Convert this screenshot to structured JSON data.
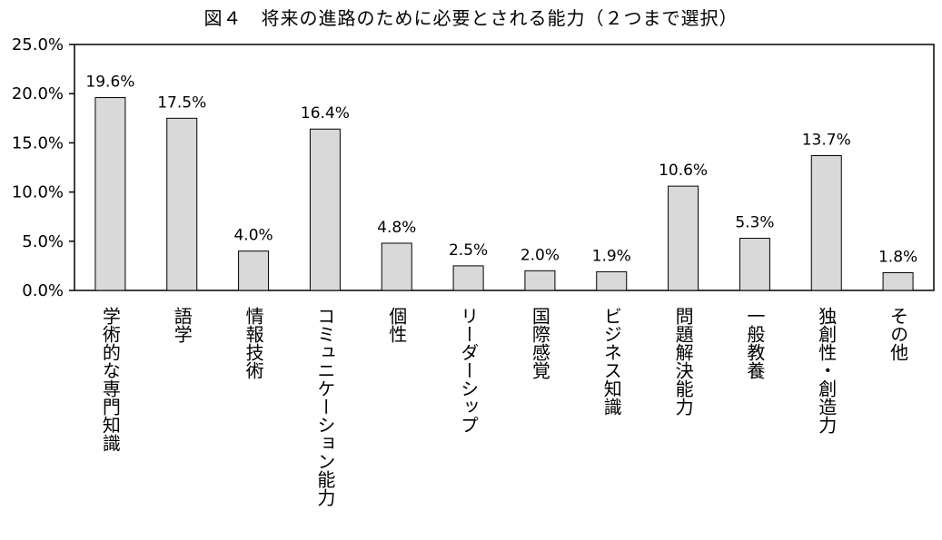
{
  "chart_data": {
    "type": "bar",
    "title": "図４　将来の進路のために必要とされる能力（２つまで選択）",
    "categories": [
      "学術的な専門知識",
      "語学",
      "情報技術",
      "コミュニケーション能力",
      "個性",
      "リーダーシップ",
      "国際感覚",
      "ビジネス知識",
      "問題解決能力",
      "一般教養",
      "独創性・創造力",
      "その他"
    ],
    "values": [
      19.6,
      17.5,
      4.0,
      16.4,
      4.8,
      2.5,
      2.0,
      1.9,
      10.6,
      5.3,
      13.7,
      1.8
    ],
    "data_labels": [
      "19.6%",
      "17.5%",
      "4.0%",
      "16.4%",
      "4.8%",
      "2.5%",
      "2.0%",
      "1.9%",
      "10.6%",
      "5.3%",
      "13.7%",
      "1.8%"
    ],
    "y_ticks": [
      "0.0%",
      "5.0%",
      "10.0%",
      "15.0%",
      "20.0%",
      "25.0%"
    ],
    "ylim": [
      0,
      25
    ],
    "xlabel": "",
    "ylabel": "",
    "grid": false,
    "legend": "none",
    "bar_color": "#d9d9d9",
    "bar_edge_color": "#000000"
  }
}
